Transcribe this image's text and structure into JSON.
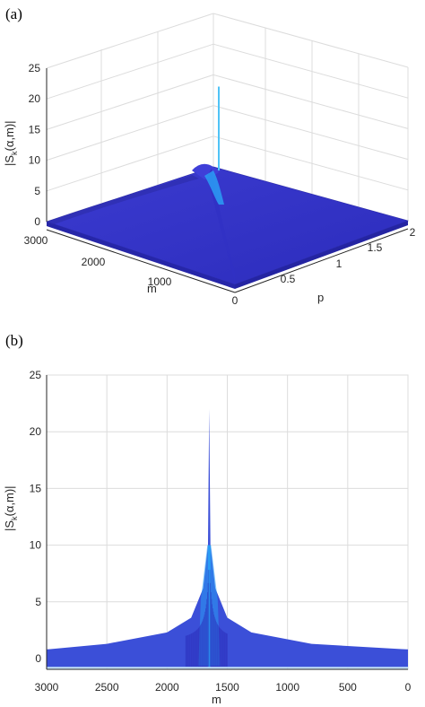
{
  "chart_data": [
    {
      "panel": "(a)",
      "type": "surface",
      "xlabel": "m",
      "ylabel": "p",
      "zlabel": "|S_k(α,m)|",
      "zlabel_parts": {
        "main": "|S",
        "sub": "k",
        "rest": "(α,m)|"
      },
      "x_ticks": [
        "3000",
        "2000",
        "1000",
        "0"
      ],
      "y_ticks": [
        "0.5",
        "1",
        "1.5",
        "2"
      ],
      "z_ticks": [
        "0",
        "5",
        "10",
        "15",
        "20",
        "25"
      ],
      "xlim": [
        0,
        3000
      ],
      "ylim": [
        0,
        2
      ],
      "zlim": [
        0,
        25
      ],
      "peak": {
        "m": 1650,
        "p": 1.0,
        "value": 22
      },
      "ridge_value": 2,
      "baseline_value": 1,
      "colormap": [
        "#2f2fc4",
        "#3a3ad6",
        "#2a9df4",
        "#4fc3f7"
      ],
      "grid": true
    },
    {
      "panel": "(b)",
      "type": "line",
      "xlabel": "m",
      "ylabel": "|S_k(α,m)|",
      "ylabel_parts": {
        "main": "|S",
        "sub": "k",
        "rest": "(α,m)|"
      },
      "x_ticks": [
        "3000",
        "2500",
        "2000",
        "1500",
        "1000",
        "500",
        "0"
      ],
      "y_ticks": [
        "0",
        "5",
        "10",
        "15",
        "20",
        "25"
      ],
      "xlim": [
        0,
        3000
      ],
      "ylim": [
        0,
        25
      ],
      "x_reversed": true,
      "peak": {
        "m": 1650,
        "value": 22
      },
      "secondary_peak_value": 10,
      "envelope_points": [
        {
          "m": 3000,
          "value": 0.8
        },
        {
          "m": 2500,
          "value": 1.3
        },
        {
          "m": 2000,
          "value": 2.3
        },
        {
          "m": 1800,
          "value": 3.6
        },
        {
          "m": 1700,
          "value": 6.2
        },
        {
          "m": 1660,
          "value": 10
        },
        {
          "m": 1650,
          "value": 22
        },
        {
          "m": 1640,
          "value": 10
        },
        {
          "m": 1600,
          "value": 6.2
        },
        {
          "m": 1500,
          "value": 3.6
        },
        {
          "m": 1300,
          "value": 2.3
        },
        {
          "m": 800,
          "value": 1.3
        },
        {
          "m": 0,
          "value": 0.8
        }
      ],
      "colors": {
        "fill_dark": "#2f2fc4",
        "fill_mid": "#3b4fd8",
        "fill_light": "#2a9df4"
      },
      "grid": true
    }
  ]
}
